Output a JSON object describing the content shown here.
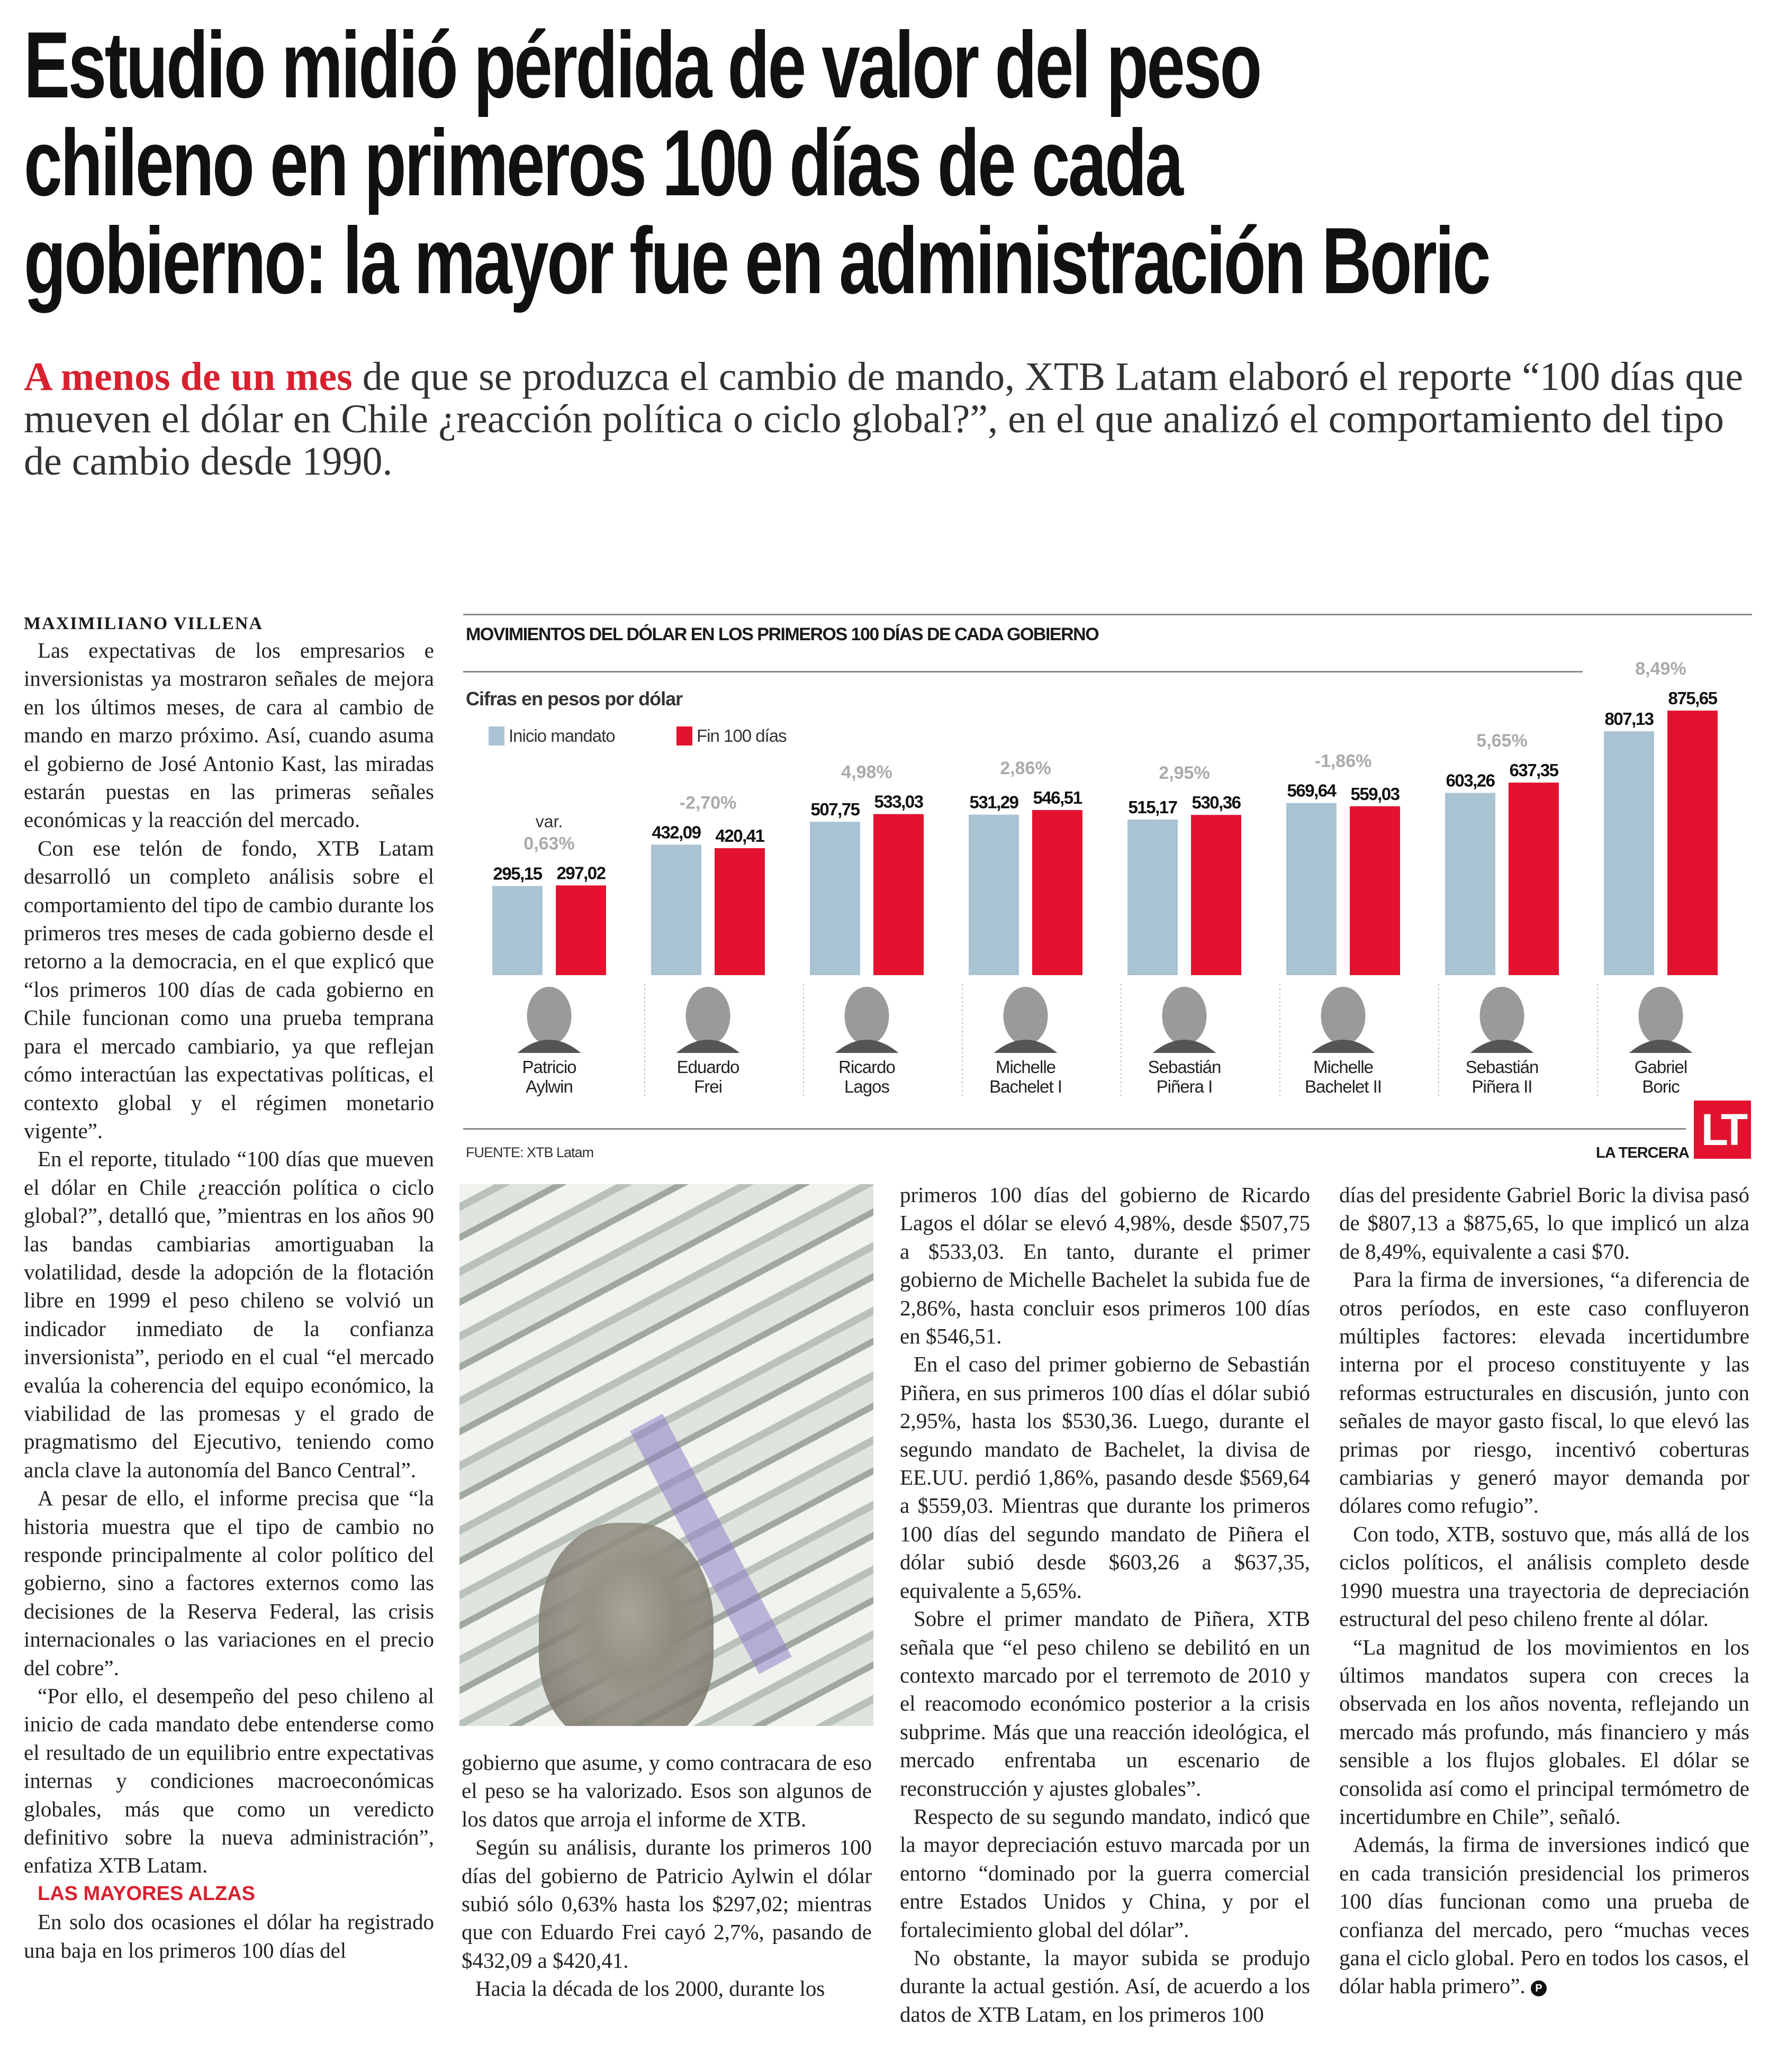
{
  "headline": {
    "lines": [
      "Estudio midió pérdida de valor del peso",
      "chileno en primeros 100 días de cada",
      "gobierno: la mayor fue en administración Boric"
    ]
  },
  "deck": {
    "lead": "A menos de un mes",
    "text": " de que se produzca el cambio de mando, XTB Latam elaboró el reporte “100 días que mueven el dólar en Chile ¿reacción política o ciclo global?”, en el que analizó el comportamiento del tipo de cambio desde 1990."
  },
  "byline": "MAXIMILIANO VILLENA",
  "body": {
    "col1": [
      "Las expectativas de los empresarios e inversionistas ya mostraron señales de mejora en los últimos meses, de cara al cambio de mando en marzo próximo. Así, cuando asuma el gobierno de José Antonio Kast, las miradas estarán puestas en las primeras señales económicas y la reacción del mercado.",
      "Con ese telón de fondo, XTB Latam desarrolló un completo análisis sobre el comportamiento del tipo de cambio durante los primeros tres meses de cada gobierno desde el retorno a la democracia, en el que explicó que “los primeros 100 días de cada gobierno en Chile funcionan como una prueba temprana para el mercado cambiario, ya que reflejan cómo interactúan las expectativas políticas, el contexto global y el régimen monetario vigente”.",
      "En el reporte, titulado “100 días que mueven el dólar en Chile ¿reacción política o ciclo global?”, detalló que, ”mientras en los años 90 las bandas cambiarias amortiguaban la volatilidad, desde la adopción de la flotación libre en 1999 el peso chileno se volvió un indicador inmediato de la confianza inversionista”, periodo en el cual “el mercado evalúa la coherencia del equipo económico, la viabilidad de las promesas y el grado de pragmatismo del Ejecutivo, teniendo como ancla clave la autonomía del Banco Central”.",
      "A pesar de ello, el informe precisa que “la historia muestra que el tipo de cambio no responde principalmente al color político del gobierno, sino a factores externos como las decisiones de la Reserva Federal, las crisis internacionales o las variaciones en el precio del cobre”.",
      "“Por ello, el desempeño del peso chileno al inicio de cada mandato debe entenderse como el resultado de un equilibrio entre expectativas internas y condiciones macroeconómicas globales, más que como un veredicto definitivo sobre la nueva administración”, enfatiza XTB Latam."
    ],
    "subhead": "LAS MAYORES ALZAS",
    "col1_after": "En solo dos ocasiones el dólar ha registrado una baja en los primeros 100 días del",
    "col2": [
      "gobierno que asume, y como contracara de eso el peso se ha valorizado. Esos son algunos de los datos que arroja el informe de XTB.",
      "Según su análisis, durante los primeros 100 días del gobierno de Patricio Aylwin el dólar subió sólo 0,63% hasta los $297,02; mientras que con Eduardo Frei cayó 2,7%, pasando de $432,09 a $420,41.",
      "Hacia la década de los 2000, durante los"
    ],
    "col3": [
      "primeros 100 días del gobierno de Ricardo Lagos el dólar se elevó 4,98%, desde $507,75 a $533,03. En tanto, durante el primer gobierno de Michelle Bachelet la subida fue de 2,86%, hasta concluir esos primeros 100 días en $546,51.",
      "En el caso del primer gobierno de Sebastián Piñera, en sus primeros 100 días el dólar subió 2,95%, hasta los $530,36. Luego, durante el segundo mandato de Bachelet, la divisa de EE.UU. perdió 1,86%, pasando desde $569,64 a $559,03. Mientras que durante los primeros 100 días del segundo mandato de Piñera el dólar subió desde $603,26 a $637,35, equivalente a 5,65%.",
      "Sobre el primer mandato de Piñera, XTB señala que “el peso chileno se debilitó en un contexto marcado por el terremoto de 2010 y el reacomodo económico posterior a la crisis subprime. Más que una reacción ideológica, el mercado enfrentaba un escenario de reconstrucción y ajustes globales”.",
      "Respecto de su segundo mandato, indicó que la mayor depreciación estuvo marcada por un entorno “dominado por la guerra comercial entre Estados Unidos y China, y por el fortalecimiento global del dólar”.",
      "No obstante, la mayor subida se produjo durante la actual gestión. Así, de acuerdo a los datos de XTB Latam, en los primeros 100"
    ],
    "col4": [
      "días del presidente Gabriel Boric la divisa pasó de $807,13 a $875,65, lo que implicó un alza de 8,49%, equivalente a casi $70.",
      "Para la firma de inversiones, “a diferencia de otros períodos, en este caso confluyeron múltiples factores: elevada incertidumbre interna por el proceso constituyente y las reformas estructurales en discusión, junto con señales de mayor gasto fiscal, lo que elevó las primas por riesgo, incentivó coberturas cambiarias y generó mayor demanda por dólares como refugio”.",
      "Con todo, XTB, sostuvo que, más allá de los ciclos políticos, el análisis completo desde 1990 muestra una trayectoria de depreciación estructural del peso chileno frente al dólar.",
      "“La magnitud de los movimientos en los últimos mandatos supera con creces la observada en los años noventa, reflejando un mercado más profundo, más financiero y más sensible a los flujos globales. El dólar se consolida así como el principal termómetro de incertidumbre en Chile”, señaló.",
      "Además, la firma de inversiones indicó que en cada transición presidencial los primeros 100 días funcionan como una prueba de confianza del mercado, pero “muchas veces gana el ciclo global. Pero en todos los casos, el dólar habla primero”."
    ],
    "endmark": "P"
  },
  "chart_data": {
    "type": "bar",
    "title": "MOVIMIENTOS DEL DÓLAR EN LOS PRIMEROS 100 DÍAS DE CADA GOBIERNO",
    "subtitle": "Cifras en pesos por dólar",
    "var_label": "var.",
    "categories": [
      [
        "Patricio",
        "Aylwin"
      ],
      [
        "Eduardo",
        "Frei"
      ],
      [
        "Ricardo",
        "Lagos"
      ],
      [
        "Michelle",
        "Bachelet I"
      ],
      [
        "Sebastián",
        "Piñera I"
      ],
      [
        "Michelle",
        "Bachelet II"
      ],
      [
        "Sebastián",
        "Piñera II"
      ],
      [
        "Gabriel",
        "Boric"
      ]
    ],
    "series": [
      {
        "name": "Inicio mandato",
        "color": "#a9c3d3",
        "values": [
          295.15,
          432.09,
          507.75,
          531.29,
          515.17,
          569.64,
          603.26,
          807.13
        ],
        "labels": [
          "295,15",
          "432,09",
          "507,75",
          "531,29",
          "515,17",
          "569,64",
          "603,26",
          "807,13"
        ]
      },
      {
        "name": "Fin 100 días",
        "color": "#e3132f",
        "values": [
          297.02,
          420.41,
          533.03,
          546.51,
          530.36,
          559.03,
          637.35,
          875.65
        ],
        "labels": [
          "297,02",
          "420,41",
          "533,03",
          "546,51",
          "530,36",
          "559,03",
          "637,35",
          "875,65"
        ]
      }
    ],
    "variation": [
      "0,63%",
      "-2,70%",
      "4,98%",
      "2,86%",
      "2,95%",
      "-1,86%",
      "5,65%",
      "8,49%"
    ],
    "ylim": [
      0,
      900
    ],
    "legend": "top-left",
    "source": "FUENTE: XTB Latam",
    "credit": "LA TERCERA",
    "logo": "LT"
  }
}
